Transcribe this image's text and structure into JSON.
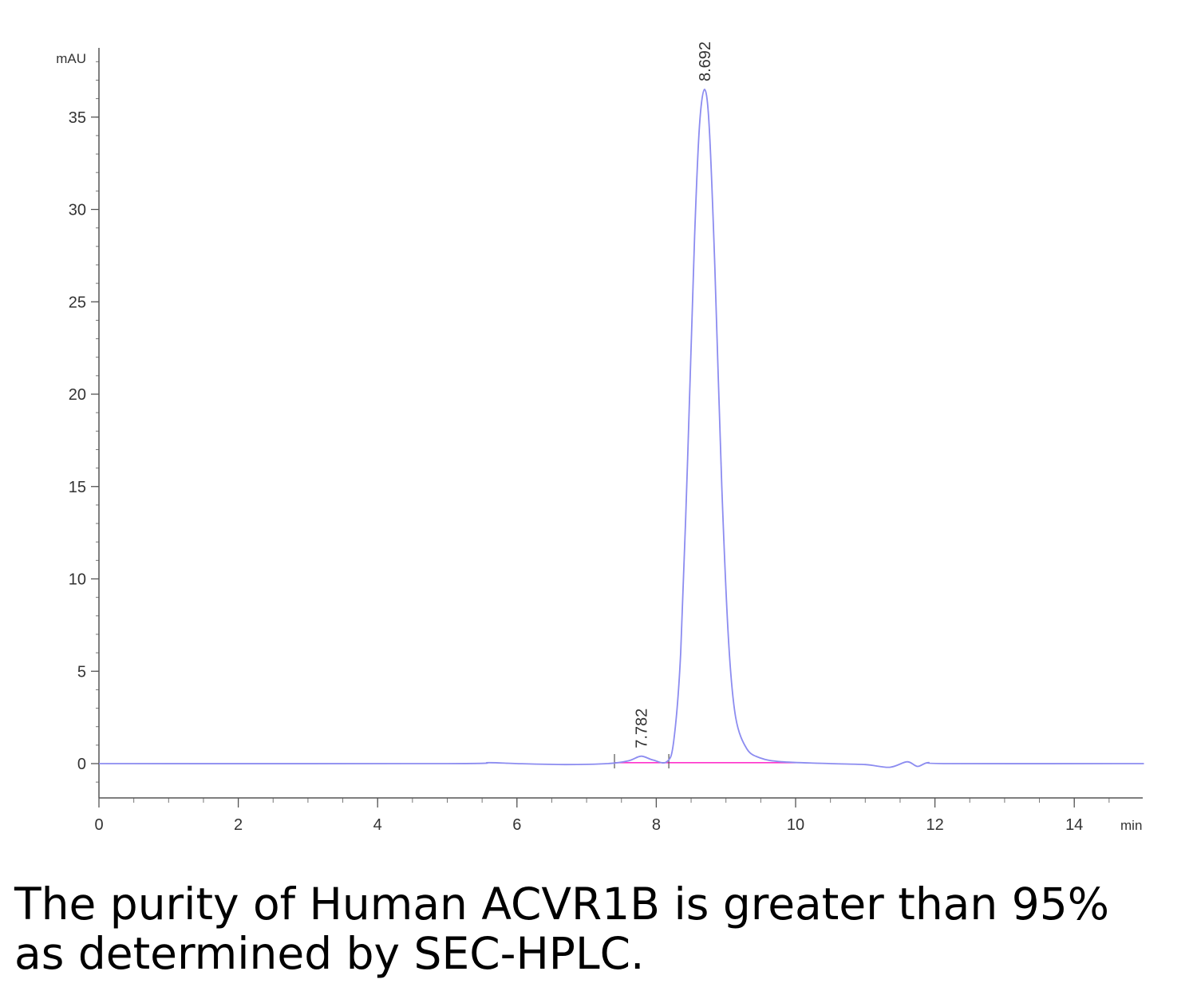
{
  "chart_data": {
    "type": "line",
    "x_unit": "min",
    "y_unit": "mAU",
    "xlim": [
      0,
      15
    ],
    "ylim": [
      -2,
      38
    ],
    "x_ticks": [
      0,
      2,
      4,
      6,
      8,
      10,
      12,
      14
    ],
    "y_ticks": [
      0,
      5,
      10,
      15,
      20,
      25,
      30,
      35
    ],
    "grid": false,
    "peaks": [
      {
        "retention_time": 7.782,
        "label": "7.782",
        "height": 0.4
      },
      {
        "retention_time": 8.692,
        "label": "8.692",
        "height": 36.5
      }
    ],
    "series": [
      {
        "x": [
          0,
          5.0,
          5.6,
          6.0,
          6.7,
          7.3,
          7.6,
          7.782,
          7.95,
          8.15,
          8.25,
          8.35,
          8.45,
          8.55,
          8.62,
          8.692,
          8.76,
          8.84,
          8.94,
          9.04,
          9.14,
          9.3,
          9.5,
          9.8,
          10.5,
          11.0,
          11.35,
          11.6,
          11.75,
          11.9,
          12.2,
          15
        ],
        "y": [
          0,
          0,
          0.05,
          0,
          -0.05,
          0,
          0.15,
          0.4,
          0.2,
          0.1,
          1.2,
          6.0,
          16.5,
          28.5,
          34.5,
          36.5,
          34.5,
          27.0,
          15.0,
          6.5,
          2.5,
          0.8,
          0.3,
          0.1,
          0,
          -0.05,
          -0.2,
          0.1,
          -0.15,
          0.05,
          0,
          0
        ],
        "color": "#8c8cf0"
      }
    ],
    "baseline": {
      "x": [
        7.4,
        10.0
      ],
      "y": [
        0.05,
        0.05
      ],
      "color": "#ff33cc"
    },
    "integration_marks_x": [
      7.4,
      8.18
    ]
  },
  "caption": "The purity of Human ACVR1B is greater than 95% as determined by SEC-HPLC."
}
